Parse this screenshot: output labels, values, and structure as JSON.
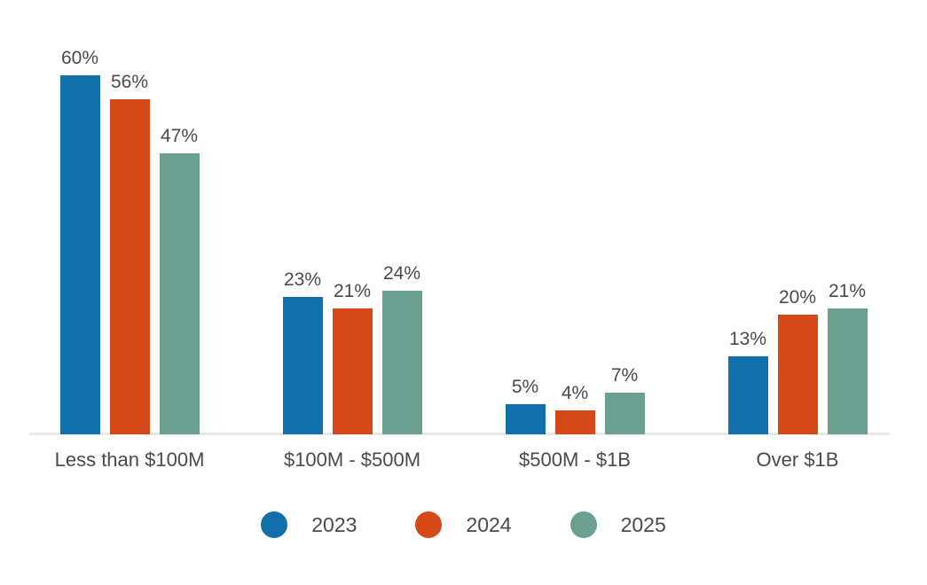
{
  "chart_data": {
    "type": "bar",
    "title": "",
    "xlabel": "",
    "ylabel": "",
    "value_suffix": "%",
    "ylim": [
      0,
      62
    ],
    "grid": false,
    "legend_position": "bottom",
    "categories": [
      "Less than $100M",
      "$100M - $500M",
      "$500M - $1B",
      "Over $1B"
    ],
    "series": [
      {
        "name": "2023",
        "color": "#1170AA",
        "values": [
          60,
          23,
          5,
          13
        ],
        "labels": [
          "60%",
          "23%",
          "5%",
          "13%"
        ]
      },
      {
        "name": "2024",
        "color": "#D54818",
        "values": [
          56,
          21,
          4,
          20
        ],
        "labels": [
          "56%",
          "21%",
          "4%",
          "20%"
        ]
      },
      {
        "name": "2025",
        "color": "#6CA191",
        "values": [
          47,
          24,
          7,
          21
        ],
        "labels": [
          "47%",
          "24%",
          "7%",
          "21%"
        ]
      }
    ],
    "colors": {
      "axis_line": "#e7e7e7",
      "text": "#4a4a4a",
      "background": "#ffffff"
    }
  }
}
